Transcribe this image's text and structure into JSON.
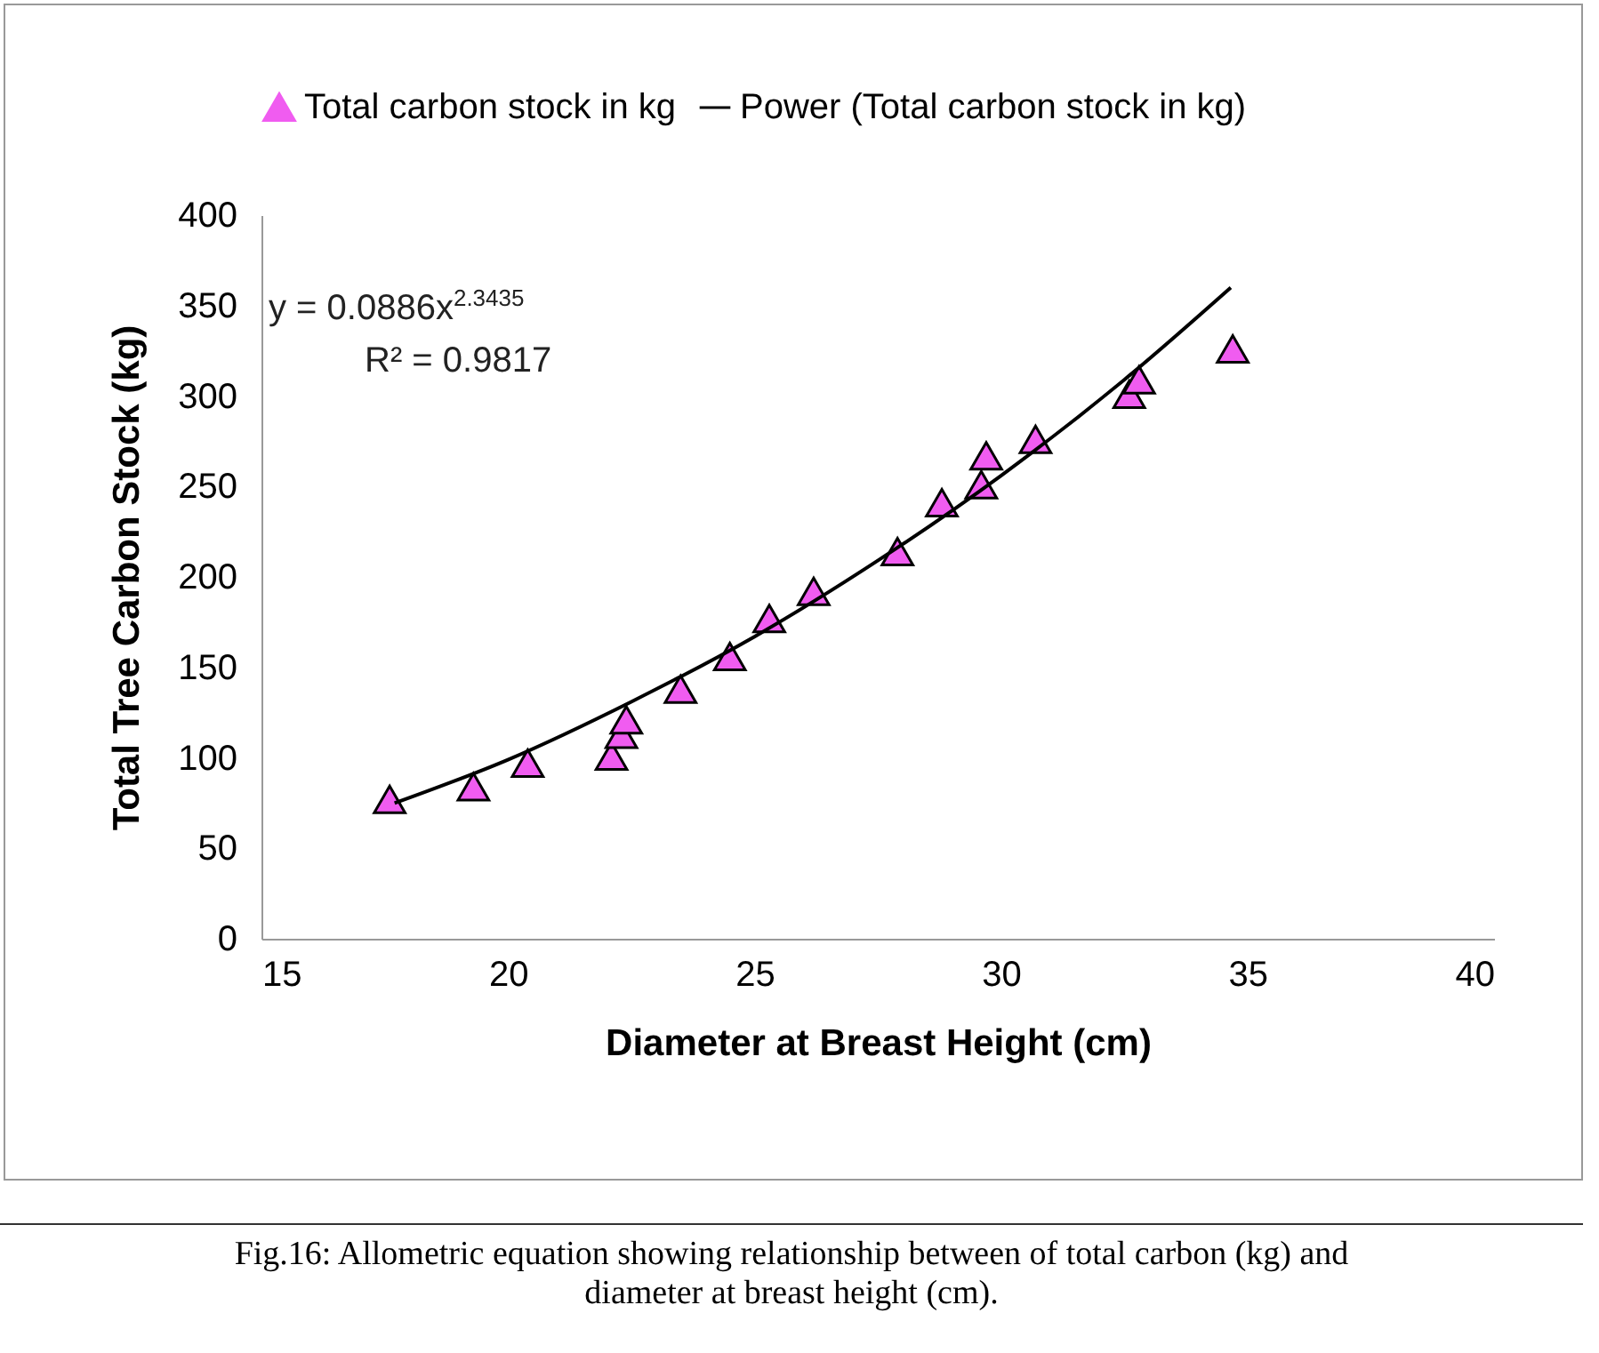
{
  "chart_data": {
    "type": "scatter",
    "xlabel": "Diameter at Breast Height (cm)",
    "ylabel": "Total Tree Carbon Stock (kg)",
    "annotations": [
      "y = 0.0886x$^{2.3435}$",
      "R² = 0.9817",
      "Fig.16: Allometric equation showing relationship between of total carbon (kg) and diameter at breast height (cm)."
    ],
    "xlim": [
      15,
      40
    ],
    "xticks": [
      15,
      20,
      25,
      30,
      35,
      40
    ],
    "ylim": [
      0,
      400
    ],
    "yticks": [
      0,
      50,
      100,
      150,
      200,
      250,
      300,
      350,
      400
    ],
    "grid": false,
    "legend": "top",
    "series": [
      {
        "name": "Total carbon stock in kg",
        "color": "#f05cf0",
        "marker": "triangle",
        "x": [
          17.6,
          19.3,
          20.4,
          22.1,
          22.3,
          22.4,
          23.5,
          24.5,
          25.3,
          26.2,
          27.9,
          28.8,
          29.6,
          29.7,
          30.7,
          32.6,
          32.8,
          34.7
        ],
        "values": [
          77,
          84,
          97,
          101,
          113,
          121,
          138,
          156,
          177,
          192,
          214,
          241,
          251,
          267,
          276,
          301,
          309,
          326
        ]
      },
      {
        "type": "line",
        "name": "Power (Total carbon stock in kg)",
        "color": "#000000",
        "x": [
          17.7,
          20,
          22.5,
          25,
          27.5,
          30,
          32.5,
          34.66
        ],
        "values": [
          75,
          99,
          131,
          167,
          209,
          256,
          309,
          360
        ]
      }
    ]
  }
}
